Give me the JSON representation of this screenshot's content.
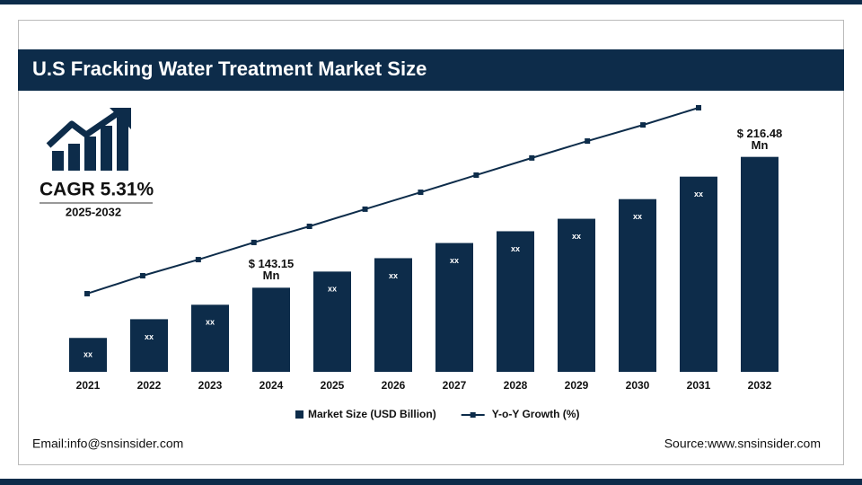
{
  "chart_data": {
    "type": "bar",
    "title": "U.S Fracking Water Treatment Market Size",
    "categories": [
      "2021",
      "2022",
      "2023",
      "2024",
      "2025",
      "2026",
      "2027",
      "2028",
      "2029",
      "2030",
      "2031",
      "2032"
    ],
    "series": [
      {
        "name": "Market Size (USD Billion)",
        "type": "bar",
        "color": "#0d2c4a",
        "values": [
          115.0,
          125.5,
          133.6,
          143.15,
          152.2,
          159.7,
          168.2,
          174.8,
          181.8,
          192.8,
          205.4,
          216.48
        ],
        "value_labels": [
          "xx",
          "xx",
          "xx",
          "$ 143.15 Mn",
          "xx",
          "xx",
          "xx",
          "xx",
          "xx",
          "xx",
          "xx",
          "$ 216.48 Mn"
        ]
      },
      {
        "name": "Y-o-Y Growth (%)",
        "type": "line",
        "axis": "y2",
        "color": "#0d2c4a",
        "values": [
          2.96,
          3.64,
          4.25,
          4.9,
          5.51,
          6.16,
          6.8,
          7.45,
          8.1,
          8.74,
          9.35,
          10.0
        ]
      }
    ],
    "ylim": [
      96,
      244
    ],
    "y2lim": [
      0,
      10
    ]
  },
  "cagr": {
    "label": "CAGR 5.31%",
    "period": "2025-2032"
  },
  "footer": {
    "email": "Email:info@snsinsider.com",
    "source": "Source:www.snsinsider.com"
  }
}
